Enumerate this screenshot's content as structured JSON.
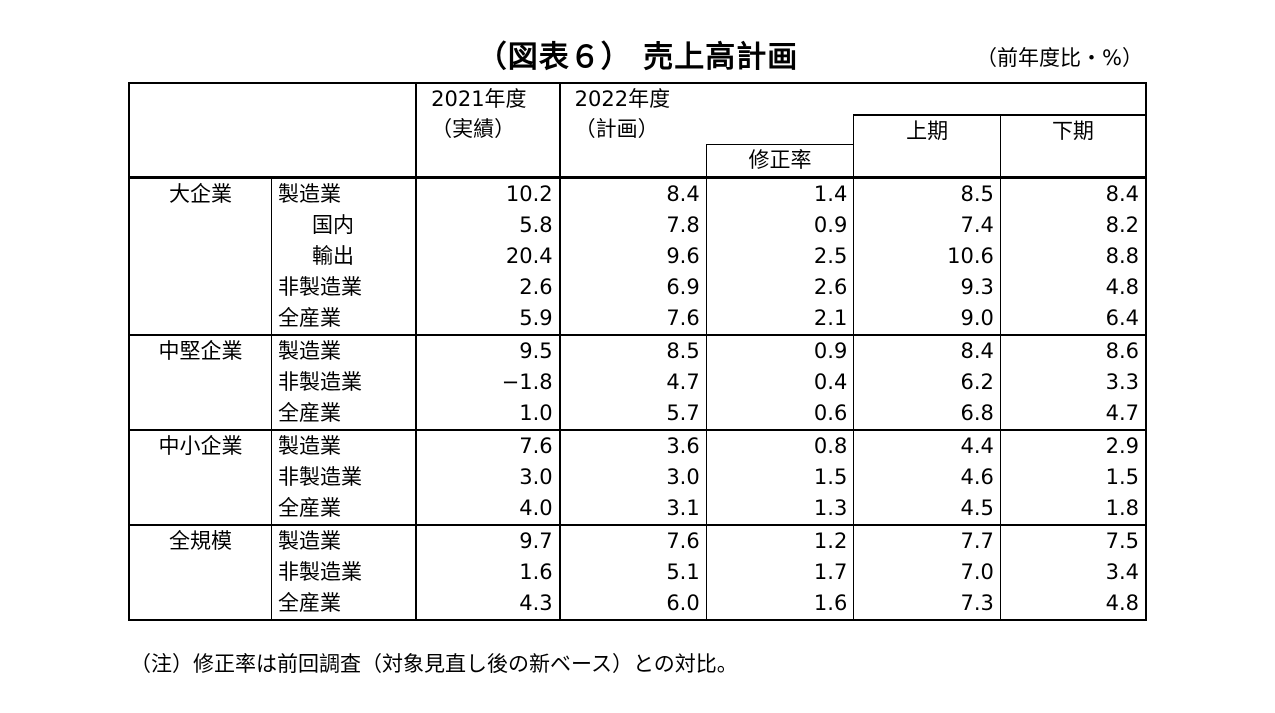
{
  "title": "（図表６） 売上高計画",
  "unit": "（前年度比・%）",
  "header": {
    "col_2021_line1": "2021年度",
    "col_2021_line2": "（実績）",
    "col_2022_line1": "2022年度",
    "col_2022_line2": "（計画）",
    "col_revision": "修正率",
    "col_first_half": "上期",
    "col_second_half": "下期"
  },
  "groups": [
    {
      "name": "大企業",
      "rows": [
        {
          "label": "製造業",
          "indent": false,
          "v2021": "10.2",
          "v2022": "8.4",
          "rev": "1.4",
          "h1": "8.5",
          "h2": "8.4"
        },
        {
          "label": "国内",
          "indent": true,
          "v2021": "5.8",
          "v2022": "7.8",
          "rev": "0.9",
          "h1": "7.4",
          "h2": "8.2"
        },
        {
          "label": "輸出",
          "indent": true,
          "v2021": "20.4",
          "v2022": "9.6",
          "rev": "2.5",
          "h1": "10.6",
          "h2": "8.8"
        },
        {
          "label": "非製造業",
          "indent": false,
          "v2021": "2.6",
          "v2022": "6.9",
          "rev": "2.6",
          "h1": "9.3",
          "h2": "4.8"
        },
        {
          "label": "全産業",
          "indent": false,
          "v2021": "5.9",
          "v2022": "7.6",
          "rev": "2.1",
          "h1": "9.0",
          "h2": "6.4"
        }
      ]
    },
    {
      "name": "中堅企業",
      "rows": [
        {
          "label": "製造業",
          "indent": false,
          "v2021": "9.5",
          "v2022": "8.5",
          "rev": "0.9",
          "h1": "8.4",
          "h2": "8.6"
        },
        {
          "label": "非製造業",
          "indent": false,
          "v2021": "−1.8",
          "v2022": "4.7",
          "rev": "0.4",
          "h1": "6.2",
          "h2": "3.3"
        },
        {
          "label": "全産業",
          "indent": false,
          "v2021": "1.0",
          "v2022": "5.7",
          "rev": "0.6",
          "h1": "6.8",
          "h2": "4.7"
        }
      ]
    },
    {
      "name": "中小企業",
      "rows": [
        {
          "label": "製造業",
          "indent": false,
          "v2021": "7.6",
          "v2022": "3.6",
          "rev": "0.8",
          "h1": "4.4",
          "h2": "2.9"
        },
        {
          "label": "非製造業",
          "indent": false,
          "v2021": "3.0",
          "v2022": "3.0",
          "rev": "1.5",
          "h1": "4.6",
          "h2": "1.5"
        },
        {
          "label": "全産業",
          "indent": false,
          "v2021": "4.0",
          "v2022": "3.1",
          "rev": "1.3",
          "h1": "4.5",
          "h2": "1.8"
        }
      ]
    },
    {
      "name": "全規模",
      "rows": [
        {
          "label": "製造業",
          "indent": false,
          "v2021": "9.7",
          "v2022": "7.6",
          "rev": "1.2",
          "h1": "7.7",
          "h2": "7.5"
        },
        {
          "label": "非製造業",
          "indent": false,
          "v2021": "1.6",
          "v2022": "5.1",
          "rev": "1.7",
          "h1": "7.0",
          "h2": "3.4"
        },
        {
          "label": "全産業",
          "indent": false,
          "v2021": "4.3",
          "v2022": "6.0",
          "rev": "1.6",
          "h1": "7.3",
          "h2": "4.8"
        }
      ]
    }
  ],
  "note": "（注）修正率は前回調査（対象見直し後の新ベース）との対比。"
}
